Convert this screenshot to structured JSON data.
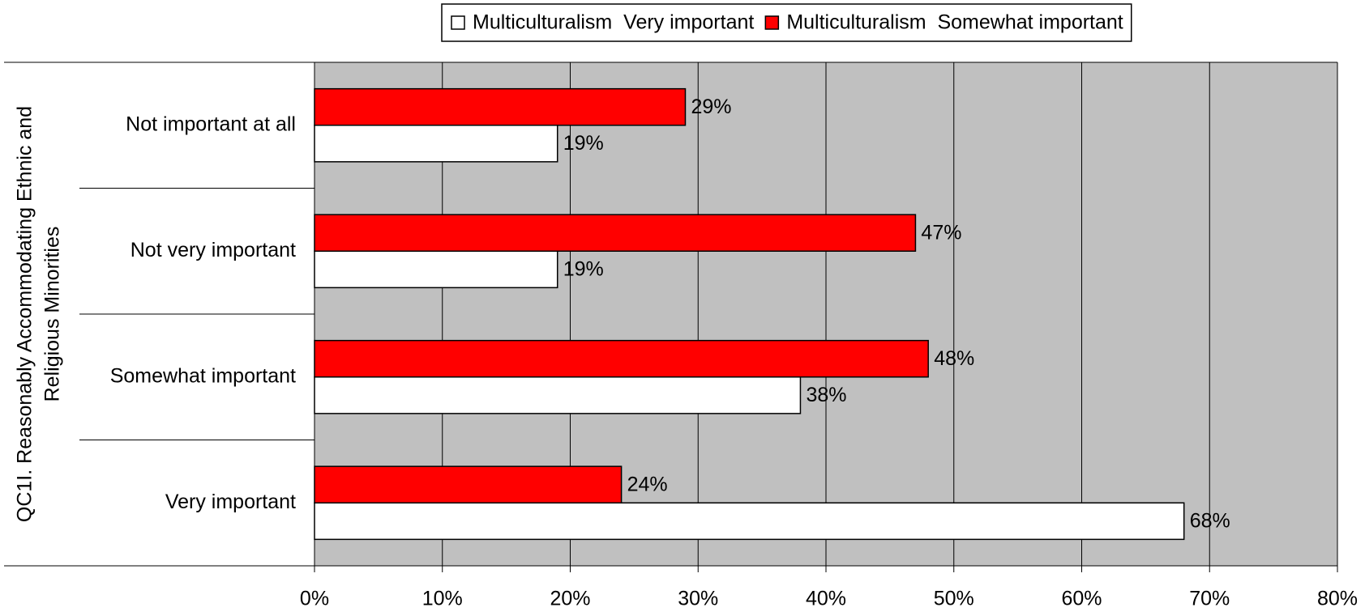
{
  "chart_data": {
    "type": "bar",
    "orientation": "horizontal",
    "y_label_lines": [
      "QC1I. Reasonably Accommodating Ethnic and",
      "Religious Minorities"
    ],
    "categories": [
      "Not important at all",
      "Not very important",
      "Somewhat important",
      "Very important"
    ],
    "series": [
      {
        "name": "Multiculturalism  Very important",
        "color": "#ffffff",
        "values": [
          19,
          19,
          38,
          68
        ],
        "value_labels": [
          "19%",
          "19%",
          "38%",
          "68%"
        ]
      },
      {
        "name": "Multiculturalism  Somewhat important",
        "color": "#ff0000",
        "values": [
          29,
          47,
          48,
          24
        ],
        "value_labels": [
          "29%",
          "47%",
          "48%",
          "24%"
        ]
      }
    ],
    "xlim": [
      0,
      80
    ],
    "xticks": [
      {
        "value": 0,
        "label": "0%"
      },
      {
        "value": 10,
        "label": "10%"
      },
      {
        "value": 20,
        "label": "20%"
      },
      {
        "value": 30,
        "label": "30%"
      },
      {
        "value": 40,
        "label": "40%"
      },
      {
        "value": 50,
        "label": "50%"
      },
      {
        "value": 60,
        "label": "60%"
      },
      {
        "value": 70,
        "label": "70%"
      },
      {
        "value": 80,
        "label": "80%"
      }
    ],
    "grid": true,
    "legend": "top",
    "plot_background": "#c0c0c0"
  }
}
